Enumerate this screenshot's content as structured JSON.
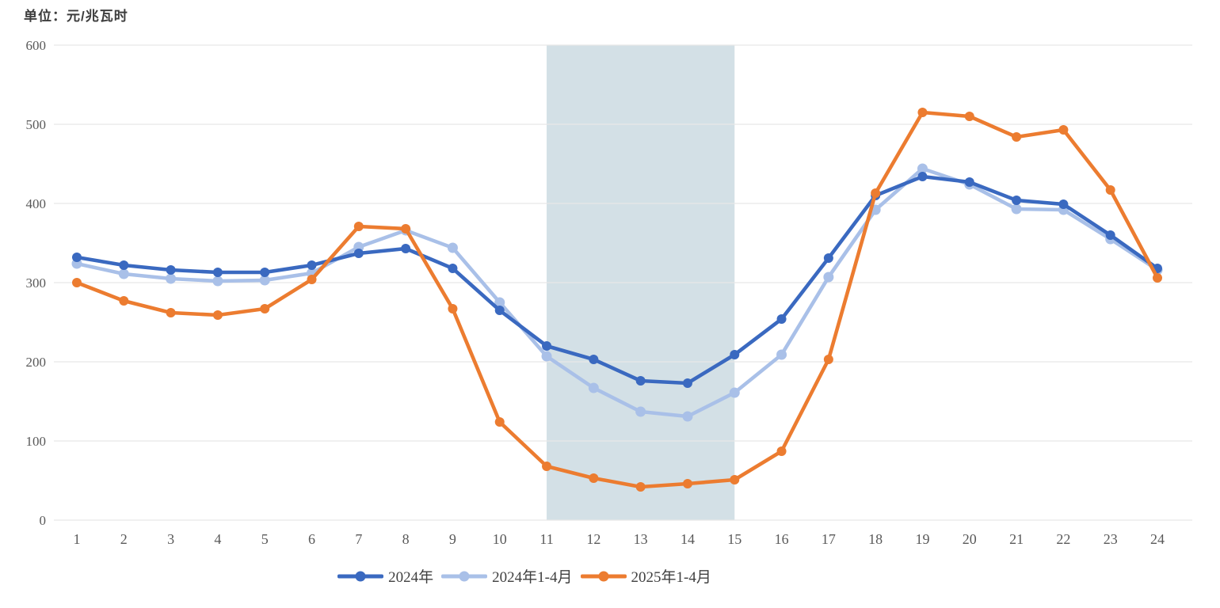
{
  "chart_data": {
    "type": "line",
    "unit_label": "单位：元/兆瓦时",
    "x": [
      1,
      2,
      3,
      4,
      5,
      6,
      7,
      8,
      9,
      10,
      11,
      12,
      13,
      14,
      15,
      16,
      17,
      18,
      19,
      20,
      21,
      22,
      23,
      24
    ],
    "series": [
      {
        "name": "2024年",
        "color": "#3a69c0",
        "values": [
          332,
          322,
          316,
          313,
          313,
          322,
          337,
          343,
          318,
          265,
          220,
          203,
          176,
          173,
          209,
          254,
          331,
          410,
          434,
          427,
          404,
          399,
          360,
          318
        ]
      },
      {
        "name": "2024年1-4月",
        "color": "#a9c0e8",
        "values": [
          324,
          311,
          305,
          302,
          303,
          312,
          345,
          366,
          344,
          275,
          207,
          167,
          137,
          131,
          161,
          209,
          307,
          392,
          444,
          424,
          393,
          392,
          355,
          316
        ]
      },
      {
        "name": "2025年1-4月",
        "color": "#ec7c30",
        "values": [
          300,
          277,
          262,
          259,
          267,
          304,
          371,
          368,
          267,
          124,
          68,
          53,
          42,
          46,
          51,
          87,
          203,
          413,
          515,
          510,
          484,
          493,
          417,
          306
        ]
      }
    ],
    "ylim": [
      0,
      600
    ],
    "ytick_step": 100,
    "yticks": [
      0,
      100,
      200,
      300,
      400,
      500,
      600
    ],
    "highlight_band": {
      "x_start": 11,
      "x_end": 15,
      "color": "#d3e0e6"
    },
    "grid_color": "#e8e8e8",
    "tick_color": "#595959",
    "legend_position": "bottom",
    "grid": "horizontal-only"
  }
}
